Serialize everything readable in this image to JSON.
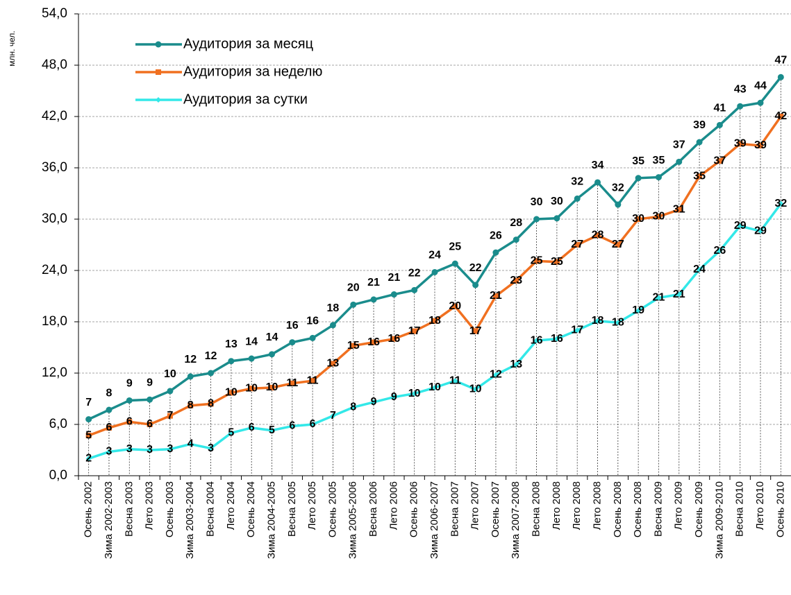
{
  "chart_data": {
    "type": "line",
    "y_label": "млн. чел.",
    "categories": [
      "Осень 2002",
      "Зима 2002-2003",
      "Весна 2003",
      "Лето 2003",
      "Осень 2003",
      "Зима 2003-2004",
      "Весна 2004",
      "Лето 2004",
      "Осень 2004",
      "Зима 2004-2005",
      "Весна 2005",
      "Лето 2005",
      "Осень 2005",
      "Зима 2005-2006",
      "Весна 2006",
      "Лето 2006",
      "Осень 2006",
      "Зима 2006-2007",
      "Весна 2007",
      "Лето 2007",
      "Осень 2007",
      "Зима 2007-2008",
      "Весна 2008",
      "Лето 2008",
      "Лето 2008",
      "Лето 2008",
      "Осень 2008",
      "Осень 2008",
      "Весна 2009",
      "Лето 2009",
      "Осень 2009",
      "Зима 2009-2010",
      "Весна 2010",
      "Лето 2010",
      "Осень 2010"
    ],
    "series": [
      {
        "name": "Аудитория  за месяц",
        "color": "#1a8c8c",
        "marker": "circle",
        "values": [
          6.6,
          7.7,
          8.8,
          8.9,
          9.9,
          11.6,
          12.0,
          13.4,
          13.7,
          14.2,
          15.6,
          16.1,
          17.6,
          20.0,
          20.6,
          21.2,
          21.7,
          23.8,
          24.8,
          22.3,
          26.1,
          27.6,
          30.0,
          30.1,
          32.4,
          34.3,
          31.7,
          34.8,
          34.9,
          36.7,
          39.0,
          41.0,
          43.2,
          43.6,
          46.6
        ],
        "value_labels": [
          "7",
          "8",
          "9",
          "9",
          "10",
          "12",
          "12",
          "13",
          "14",
          "14",
          "16",
          "16",
          "18",
          "20",
          "21",
          "21",
          "22",
          "24",
          "25",
          "22",
          "26",
          "28",
          "30",
          "30",
          "32",
          "34",
          "32",
          "35",
          "35",
          "37",
          "39",
          "41",
          "43",
          "44",
          "47"
        ]
      },
      {
        "name": "Аудитория  за неделю",
        "color": "#f07020",
        "marker": "square",
        "values": [
          4.7,
          5.6,
          6.3,
          6.0,
          7.0,
          8.2,
          8.4,
          9.7,
          10.2,
          10.3,
          10.8,
          11.1,
          13.1,
          15.2,
          15.6,
          16.0,
          16.9,
          18.1,
          19.8,
          16.9,
          21.0,
          22.8,
          25.1,
          25.0,
          27.0,
          28.1,
          27.0,
          30.0,
          30.3,
          31.1,
          35.0,
          36.8,
          38.8,
          38.6,
          42.0
        ],
        "value_labels": [
          "5",
          "6",
          "6",
          "6",
          "7",
          "8",
          "8",
          "10",
          "10",
          "10",
          "11",
          "11",
          "13",
          "15",
          "16",
          "16",
          "17",
          "18",
          "20",
          "17",
          "21",
          "23",
          "25",
          "25",
          "27",
          "28",
          "27",
          "30",
          "30",
          "31",
          "35",
          "37",
          "39",
          "39",
          "42"
        ]
      },
      {
        "name": "Аудитория  за сутки",
        "color": "#33e8e8",
        "marker": "diamond",
        "values": [
          2.0,
          2.8,
          3.1,
          3.0,
          3.1,
          3.7,
          3.2,
          5.0,
          5.6,
          5.3,
          5.8,
          6.0,
          7.0,
          8.0,
          8.6,
          9.2,
          9.6,
          10.3,
          11.1,
          10.1,
          11.8,
          13.0,
          15.8,
          16.0,
          17.0,
          18.1,
          17.9,
          19.3,
          20.8,
          21.2,
          24.1,
          26.3,
          29.2,
          28.6,
          31.8
        ],
        "value_labels": [
          "2",
          "3",
          "3",
          "3",
          "3",
          "4",
          "3",
          "5",
          "6",
          "5",
          "6",
          "6",
          "7",
          "8",
          "9",
          "9",
          "10",
          "10",
          "11",
          "10",
          "12",
          "13",
          "16",
          "16",
          "17",
          "18",
          "18",
          "19",
          "21",
          "21",
          "24",
          "26",
          "29",
          "29",
          "32"
        ]
      }
    ],
    "ylim": [
      0,
      54
    ],
    "yticks": [
      {
        "value": 0,
        "label": "0,0"
      },
      {
        "value": 6,
        "label": "6,0"
      },
      {
        "value": 12,
        "label": "12,0"
      },
      {
        "value": 18,
        "label": "18,0"
      },
      {
        "value": 24,
        "label": "24,0"
      },
      {
        "value": 30,
        "label": "30,0"
      },
      {
        "value": 36,
        "label": "36,0"
      },
      {
        "value": 42,
        "label": "42,0"
      },
      {
        "value": 48,
        "label": "48,0"
      },
      {
        "value": 54,
        "label": "54,0"
      }
    ],
    "grid": true,
    "drop_lines": true,
    "legend": "top-left"
  }
}
